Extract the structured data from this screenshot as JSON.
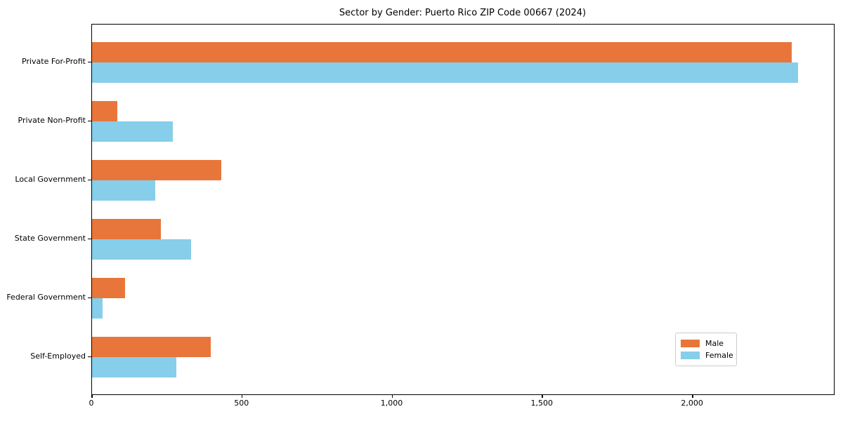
{
  "title": "Sector by Gender: Puerto Rico ZIP Code 00667 (2024)",
  "colors": {
    "male": "#E8763B",
    "female": "#86CEEA",
    "spine": "#000000",
    "legend_border": "#cccccc",
    "background": "#ffffff"
  },
  "chart_data": {
    "type": "bar",
    "orientation": "horizontal",
    "title": "Sector by Gender: Puerto Rico ZIP Code 00667 (2024)",
    "xlabel": "",
    "ylabel": "",
    "categories": [
      "Private For-Profit",
      "Private Non-Profit",
      "Local Government",
      "State Government",
      "Federal Government",
      "Self-Employed"
    ],
    "series": [
      {
        "name": "Male",
        "color": "#E8763B",
        "values": [
          2330,
          85,
          430,
          230,
          110,
          395
        ]
      },
      {
        "name": "Female",
        "color": "#86CEEA",
        "values": [
          2350,
          270,
          210,
          330,
          35,
          280
        ]
      }
    ],
    "xlim": [
      0,
      2470
    ],
    "x_ticks": [
      0,
      500,
      1000,
      1500,
      2000
    ],
    "x_tick_labels": [
      "0",
      "500",
      "1,000",
      "1,500",
      "2,000"
    ],
    "grid": false,
    "legend_position": "lower right"
  },
  "legend": {
    "items": [
      {
        "label": "Male",
        "color": "#E8763B"
      },
      {
        "label": "Female",
        "color": "#86CEEA"
      }
    ]
  }
}
